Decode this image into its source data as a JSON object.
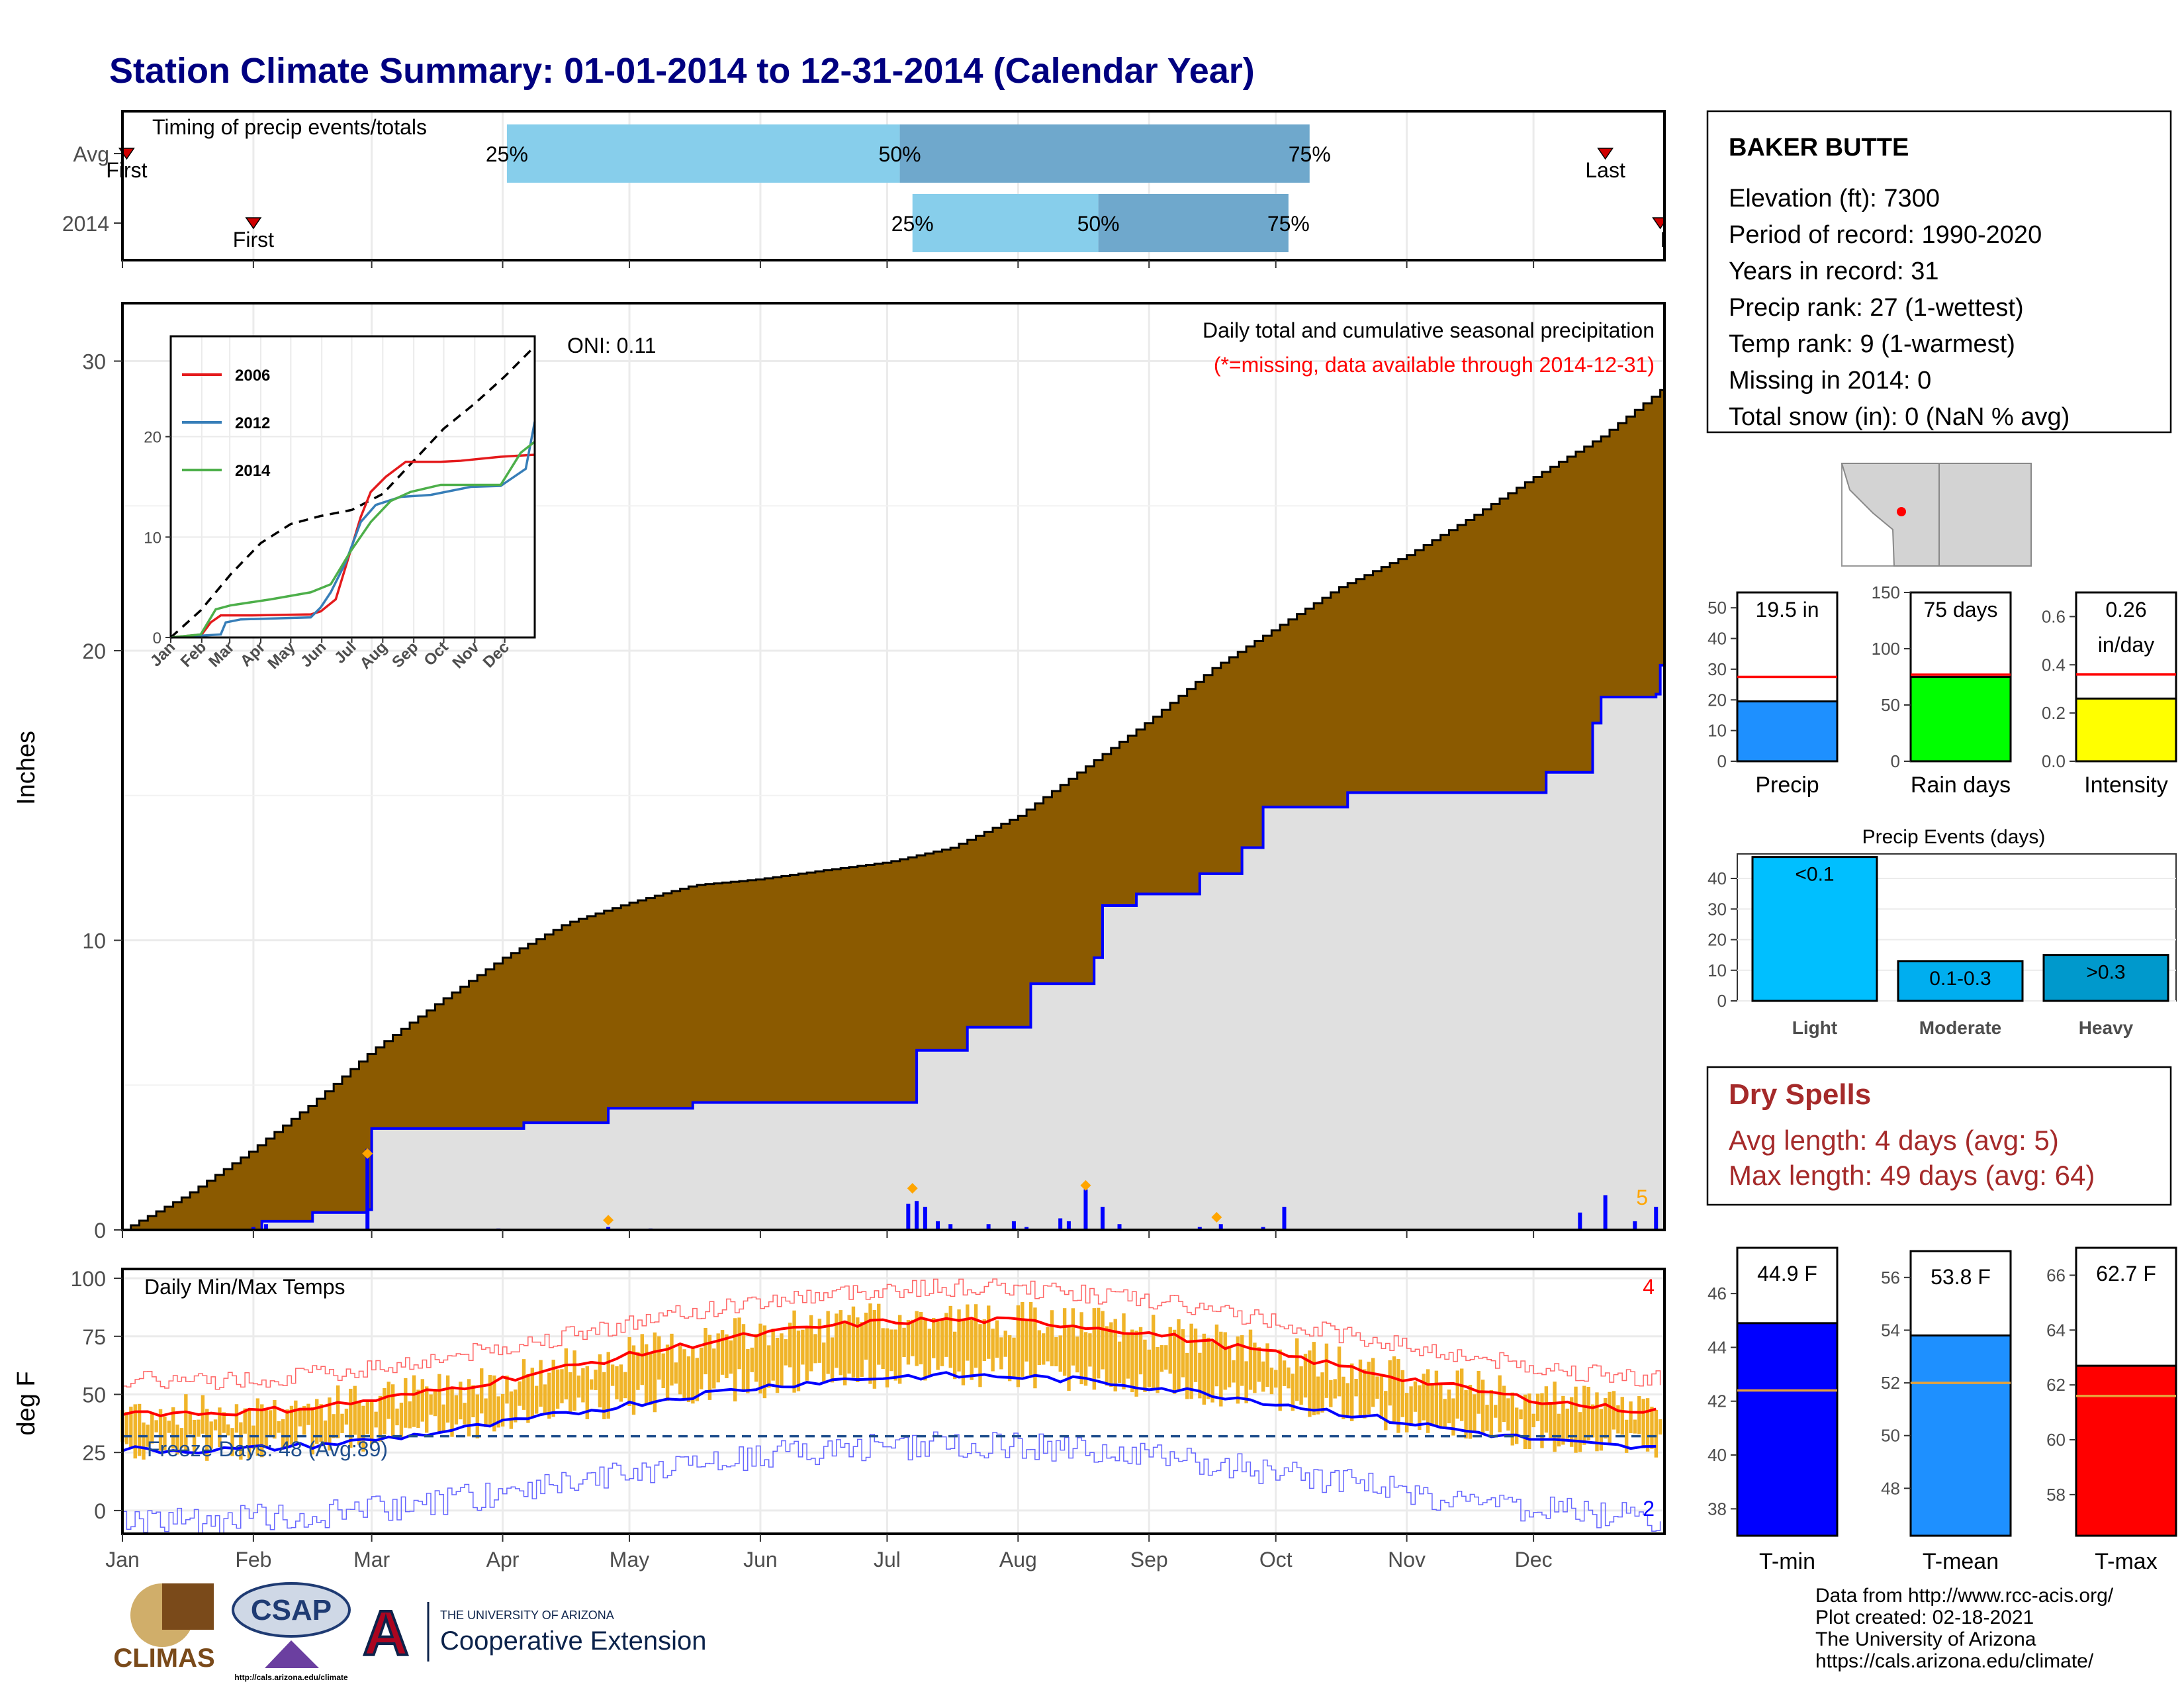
{
  "title": "Station Climate Summary: 01-01-2014 to 12-31-2014 (Calendar Year)",
  "colors": {
    "title": "#000080",
    "precip_cum_avg": "#8B5A00",
    "precip_cum_year": "#E0E0E0",
    "year_line": "#0000FF",
    "avg_band_light": "#87CEEB",
    "avg_band_dark": "#6FA8CC",
    "tmax_avg": "#FF0000",
    "tmin_avg": "#0000FF",
    "temp_bar": "#F0B429",
    "dry_spells": "#A52A2A"
  },
  "months": [
    "Jan",
    "Feb",
    "Mar",
    "Apr",
    "May",
    "Jun",
    "Jul",
    "Aug",
    "Sep",
    "Oct",
    "Nov",
    "Dec"
  ],
  "timing": {
    "label": "Timing of precip events/totals",
    "rows": [
      {
        "name": "Avg",
        "first_day": 1,
        "last_day": 351,
        "p25_day": 91,
        "p50_day": 184,
        "p75_day": 281
      },
      {
        "name": "2014",
        "first_day": 31,
        "last_day": 364,
        "p25_day": 187,
        "p50_day": 231,
        "p75_day": 276
      }
    ],
    "first_label": "First",
    "last_label": "Last",
    "last_label_cut": "La",
    "pct_labels": [
      "25%",
      "50%",
      "75%"
    ]
  },
  "precip": {
    "ylabel": "Inches",
    "ylim": [
      0,
      32
    ],
    "yticks": [
      0,
      10,
      20,
      30
    ],
    "heading": "Daily total and cumulative seasonal precipitation",
    "missing_note": "(*=missing, data available through 2014-12-31)",
    "oni": "ONI: 0.11",
    "corner_count": "5",
    "avg_cumulative": [
      [
        0,
        0
      ],
      [
        15,
        1.2
      ],
      [
        30,
        2.7
      ],
      [
        45,
        4.4
      ],
      [
        59,
        6.2
      ],
      [
        75,
        7.9
      ],
      [
        90,
        9.4
      ],
      [
        105,
        10.6
      ],
      [
        120,
        11.3
      ],
      [
        135,
        11.9
      ],
      [
        150,
        12.1
      ],
      [
        165,
        12.4
      ],
      [
        181,
        12.7
      ],
      [
        196,
        13.2
      ],
      [
        212,
        14.3
      ],
      [
        227,
        15.9
      ],
      [
        243,
        17.6
      ],
      [
        258,
        19.4
      ],
      [
        273,
        20.8
      ],
      [
        288,
        22.2
      ],
      [
        304,
        23.3
      ],
      [
        319,
        24.6
      ],
      [
        334,
        26.0
      ],
      [
        350,
        27.4
      ],
      [
        364,
        29.0
      ]
    ],
    "year_cumulative": [
      [
        0,
        0
      ],
      [
        30,
        0
      ],
      [
        33,
        0.3
      ],
      [
        45,
        0.6
      ],
      [
        58,
        0.7
      ],
      [
        59,
        3.5
      ],
      [
        75,
        3.5
      ],
      [
        95,
        3.7
      ],
      [
        115,
        4.2
      ],
      [
        135,
        4.4
      ],
      [
        150,
        4.4
      ],
      [
        187,
        4.4
      ],
      [
        188,
        6.2
      ],
      [
        200,
        7.0
      ],
      [
        210,
        7.0
      ],
      [
        215,
        8.5
      ],
      [
        230,
        9.4
      ],
      [
        232,
        11.2
      ],
      [
        240,
        11.6
      ],
      [
        255,
        12.3
      ],
      [
        265,
        13.2
      ],
      [
        270,
        14.6
      ],
      [
        290,
        15.1
      ],
      [
        335,
        15.1
      ],
      [
        337,
        15.8
      ],
      [
        348,
        17.5
      ],
      [
        350,
        18.4
      ],
      [
        363,
        18.5
      ],
      [
        364,
        19.5
      ]
    ],
    "daily_events": [
      [
        31,
        0.1
      ],
      [
        34,
        0.2
      ],
      [
        58,
        2.8
      ],
      [
        89,
        0.05
      ],
      [
        115,
        0.1
      ],
      [
        125,
        0.05
      ],
      [
        186,
        0.9
      ],
      [
        188,
        1.0
      ],
      [
        190,
        0.8
      ],
      [
        193,
        0.3
      ],
      [
        196,
        0.2
      ],
      [
        205,
        0.2
      ],
      [
        211,
        0.3
      ],
      [
        214,
        0.1
      ],
      [
        222,
        0.4
      ],
      [
        224,
        0.3
      ],
      [
        228,
        1.4
      ],
      [
        232,
        0.8
      ],
      [
        236,
        0.2
      ],
      [
        255,
        0.1
      ],
      [
        260,
        0.2
      ],
      [
        270,
        0.1
      ],
      [
        275,
        0.8
      ],
      [
        345,
        0.6
      ],
      [
        351,
        1.2
      ],
      [
        358,
        0.3
      ],
      [
        363,
        0.8
      ]
    ],
    "missing_markers": [
      [
        58,
        2.5
      ],
      [
        115,
        0.2
      ],
      [
        187,
        1.3
      ],
      [
        228,
        1.4
      ],
      [
        259,
        0.3
      ]
    ]
  },
  "inset": {
    "ylim": [
      0,
      30
    ],
    "yticks": [
      0,
      10,
      20
    ],
    "xlabels": [
      "Jan",
      "Feb",
      "Mar",
      "Apr",
      "May",
      "Jun",
      "Jul",
      "Aug",
      "Sep",
      "Oct",
      "Nov",
      "Dec"
    ],
    "series": [
      {
        "name": "2006",
        "color": "#E41A1C",
        "points": [
          [
            0,
            0
          ],
          [
            31,
            0.3
          ],
          [
            40,
            1.5
          ],
          [
            50,
            2.2
          ],
          [
            80,
            2.2
          ],
          [
            140,
            2.3
          ],
          [
            150,
            2.6
          ],
          [
            165,
            3.8
          ],
          [
            180,
            8.7
          ],
          [
            190,
            12.0
          ],
          [
            200,
            14.5
          ],
          [
            215,
            16.0
          ],
          [
            235,
            17.5
          ],
          [
            260,
            17.5
          ],
          [
            270,
            17.5
          ],
          [
            290,
            17.6
          ],
          [
            310,
            17.8
          ],
          [
            330,
            18.0
          ],
          [
            364,
            18.2
          ]
        ]
      },
      {
        "name": "2012",
        "color": "#377EB8",
        "points": [
          [
            0,
            0
          ],
          [
            50,
            0.3
          ],
          [
            55,
            1.5
          ],
          [
            70,
            1.8
          ],
          [
            140,
            2.0
          ],
          [
            150,
            3.0
          ],
          [
            160,
            4.5
          ],
          [
            175,
            7.5
          ],
          [
            190,
            11.5
          ],
          [
            205,
            13.2
          ],
          [
            230,
            14.0
          ],
          [
            260,
            14.2
          ],
          [
            300,
            15.0
          ],
          [
            330,
            15.1
          ],
          [
            355,
            16.8
          ],
          [
            364,
            21.5
          ]
        ]
      },
      {
        "name": "2014",
        "color": "#4DAF4A",
        "points": [
          [
            0,
            0
          ],
          [
            30,
            0.3
          ],
          [
            45,
            2.8
          ],
          [
            60,
            3.2
          ],
          [
            100,
            3.8
          ],
          [
            140,
            4.5
          ],
          [
            160,
            5.3
          ],
          [
            180,
            8.6
          ],
          [
            200,
            11.5
          ],
          [
            220,
            13.6
          ],
          [
            240,
            14.5
          ],
          [
            270,
            15.2
          ],
          [
            330,
            15.2
          ],
          [
            350,
            18.4
          ],
          [
            364,
            19.5
          ]
        ]
      }
    ],
    "avg_points": [
      [
        0,
        0
      ],
      [
        30,
        2.7
      ],
      [
        60,
        6.3
      ],
      [
        90,
        9.4
      ],
      [
        120,
        11.3
      ],
      [
        150,
        12.1
      ],
      [
        181,
        12.7
      ],
      [
        212,
        14.3
      ],
      [
        243,
        17.6
      ],
      [
        273,
        20.8
      ],
      [
        304,
        23.3
      ],
      [
        334,
        26.0
      ],
      [
        364,
        29.0
      ]
    ]
  },
  "temps": {
    "label": "Daily Min/Max Temps",
    "ylabel": "deg F",
    "ylim": [
      -10,
      104
    ],
    "yticks": [
      0,
      25,
      50,
      75,
      100
    ],
    "freeze_label": "Freeze Days: 48 (Avg:89)",
    "freeze_line": 32,
    "corner_top": "4",
    "corner_bottom": "2"
  },
  "station": {
    "name": "BAKER BUTTE",
    "lines": [
      "Elevation (ft): 7300",
      "Period of record: 1990-2020",
      "Years in record: 31",
      "Precip rank: 27 (1-wettest)",
      "Temp rank: 9 (1-warmest)",
      "Missing in 2014: 0",
      "Total snow (in): 0 (NaN % avg)"
    ]
  },
  "summary_bars": [
    {
      "label": "Precip",
      "value_label": "19.5 in",
      "value": 19.5,
      "avg": 27.5,
      "ylim": [
        0,
        55
      ],
      "yticks": [
        0,
        10,
        20,
        30,
        40,
        50
      ],
      "color": "#1E90FF"
    },
    {
      "label": "Rain days",
      "value_label": "75 days",
      "value": 75,
      "avg": 77,
      "ylim": [
        0,
        150
      ],
      "yticks": [
        0,
        50,
        100,
        150
      ],
      "color": "#00FF00"
    },
    {
      "label": "Intensity",
      "value_label": "0.26",
      "value_label2": "in/day",
      "value": 0.26,
      "avg": 0.36,
      "ylim": [
        0,
        0.7
      ],
      "yticks": [
        "0.0",
        "0.2",
        "0.4",
        "0.6"
      ],
      "color": "#FFFF00"
    }
  ],
  "events": {
    "title": "Precip Events (days)",
    "ylim": [
      0,
      48
    ],
    "yticks": [
      0,
      10,
      20,
      30,
      40
    ],
    "bars": [
      {
        "label": "Light",
        "bin": "<0.1",
        "value": 47,
        "color": "#00BFFF"
      },
      {
        "label": "Moderate",
        "bin": "0.1-0.3",
        "value": 13,
        "color": "#00AEEF"
      },
      {
        "label": "Heavy",
        "bin": ">0.3",
        "value": 15,
        "color": "#0099CC"
      }
    ]
  },
  "dry_spells": {
    "title": "Dry Spells",
    "avg_line": "Avg length: 4 days (avg: 5)",
    "max_line": "Max length: 49 days (avg: 64)"
  },
  "temp_bars": [
    {
      "label": "T-min",
      "value_label": "44.9 F",
      "value": 44.9,
      "avg": 42.4,
      "ylim": [
        37,
        47.7
      ],
      "yticks": [
        38,
        40,
        42,
        44,
        46
      ],
      "color": "#0000FF"
    },
    {
      "label": "T-mean",
      "value_label": "53.8 F",
      "value": 53.8,
      "avg": 52.0,
      "ylim": [
        46.2,
        57
      ],
      "yticks": [
        48,
        50,
        52,
        54,
        56
      ],
      "color": "#1E90FF"
    },
    {
      "label": "T-max",
      "value_label": "62.7 F",
      "value": 62.7,
      "avg": 61.6,
      "ylim": [
        56.5,
        67
      ],
      "yticks": [
        58,
        60,
        62,
        64,
        66
      ],
      "color": "#FF0000"
    }
  ],
  "footer": {
    "lines": [
      "Data from http://www.rcc-acis.org/",
      "Plot created: 02-18-2021",
      "The University of Arizona",
      "https://cals.arizona.edu/climate/"
    ],
    "logos": {
      "climas": "CLIMAS",
      "csap": "CSAP",
      "csap_url": "http://cals.arizona.edu/climate",
      "ua_small": "THE UNIVERSITY OF ARIZONA",
      "ua_big": "Cooperative Extension"
    }
  }
}
